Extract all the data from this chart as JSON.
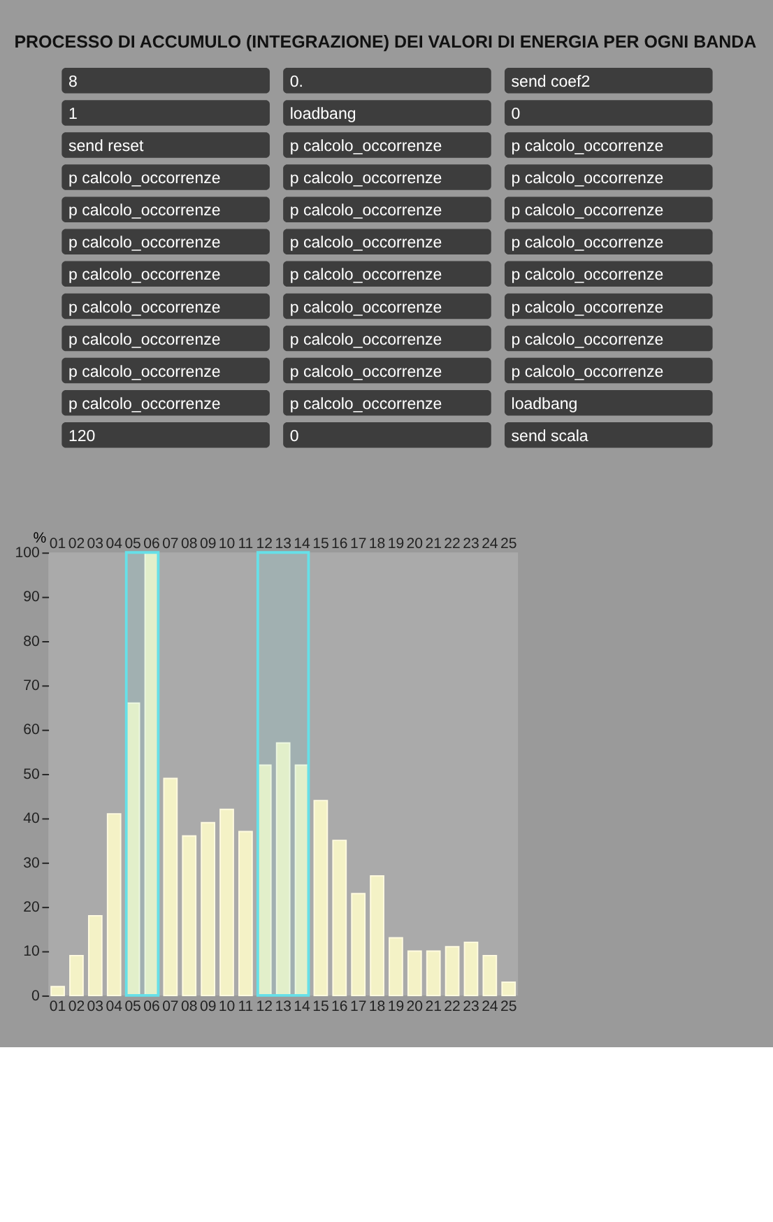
{
  "chart_data": {
    "type": "bar",
    "title": "PROCESSO DI ACCUMULO (INTEGRAZIONE) DEI VALORI DI ENERGIA PER OGNI BANDA",
    "ylabel": "%",
    "categories": [
      "01",
      "02",
      "03",
      "04",
      "05",
      "06",
      "07",
      "08",
      "09",
      "10",
      "11",
      "12",
      "13",
      "14",
      "15",
      "16",
      "17",
      "18",
      "19",
      "20",
      "21",
      "22",
      "23",
      "24",
      "25"
    ],
    "series": [
      {
        "color": "#f4f2c6",
        "values": [
          2,
          9,
          18,
          41,
          66,
          100,
          49,
          36,
          39,
          42,
          37,
          52,
          57,
          52,
          44,
          35,
          23,
          27,
          13,
          10,
          10,
          11,
          12,
          9,
          3
        ]
      }
    ],
    "ylim": [
      0,
      100
    ],
    "yticks": [
      0,
      10,
      20,
      30,
      40,
      50,
      60,
      70,
      80,
      90,
      100
    ],
    "grid": false,
    "legend": false,
    "bands": [
      {
        "axis": "x",
        "from": "05",
        "to": "06",
        "color": "#66e0e8"
      },
      {
        "axis": "x",
        "from": "12",
        "to": "14",
        "color": "#66e0e8"
      }
    ],
    "annotations": [
      "8",
      "0.",
      "send coef2",
      "1",
      "loadbang",
      "0",
      "send reset",
      "p calcolo_occorrenze",
      "p calcolo_occorrenze",
      "p calcolo_occorrenze",
      "p calcolo_occorrenze",
      "p calcolo_occorrenze",
      "p calcolo_occorrenze",
      "p calcolo_occorrenze",
      "p calcolo_occorrenze",
      "p calcolo_occorrenze",
      "p calcolo_occorrenze",
      "p calcolo_occorrenze",
      "p calcolo_occorrenze",
      "p calcolo_occorrenze",
      "p calcolo_occorrenze",
      "p calcolo_occorrenze",
      "p calcolo_occorrenze",
      "p calcolo_occorrenze",
      "p calcolo_occorrenze",
      "p calcolo_occorrenze",
      "p calcolo_occorrenze",
      "p calcolo_occorrenze",
      "p calcolo_occorrenze",
      "p calcolo_occorrenze",
      "p calcolo_occorrenze",
      "p calcolo_occorrenze",
      "loadbang",
      "120",
      "0",
      "send scala"
    ]
  }
}
